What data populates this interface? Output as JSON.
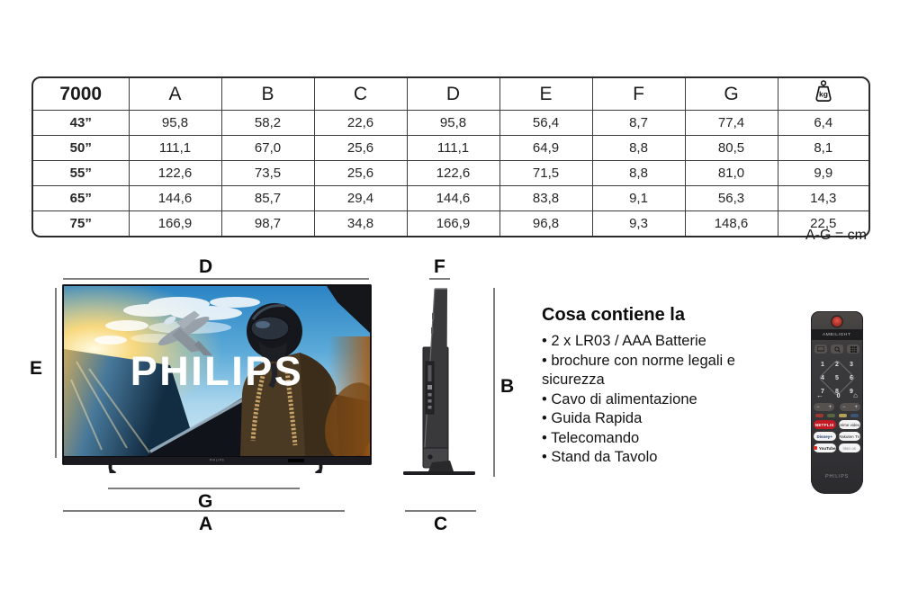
{
  "spec_table": {
    "model": "7000",
    "header_columns": [
      "A",
      "B",
      "C",
      "D",
      "E",
      "F",
      "G"
    ],
    "weight_icon_label": "kg",
    "rows": [
      [
        "43”",
        "95,8",
        "58,2",
        "22,6",
        "95,8",
        "56,4",
        "8,7",
        "77,4",
        "6,4"
      ],
      [
        "50”",
        "111,1",
        "67,0",
        "25,6",
        "111,1",
        "64,9",
        "8,8",
        "80,5",
        "8,1"
      ],
      [
        "55”",
        "122,6",
        "73,5",
        "25,6",
        "122,6",
        "71,5",
        "8,8",
        "81,0",
        "9,9"
      ],
      [
        "65”",
        "144,6",
        "85,7",
        "29,4",
        "144,6",
        "83,8",
        "9,1",
        "56,3",
        "14,3"
      ],
      [
        "75”",
        "166,9",
        "98,7",
        "34,8",
        "166,9",
        "96,8",
        "9,3",
        "148,6",
        "22,5"
      ]
    ],
    "units_note": "A-G = cm"
  },
  "front_view": {
    "dim_top": "D",
    "dim_left": "E",
    "dim_stand": "G",
    "dim_bottom": "A",
    "screen_logo": "PHILIPS",
    "bezel_logo": "PHILIPS"
  },
  "side_view": {
    "dim_top": "F",
    "dim_right": "B",
    "dim_bottom": "C"
  },
  "box_contents": {
    "title": "Cosa contiene la",
    "items": [
      "2 x LR03 / AAA Batterie",
      "brochure con norme legali e sicurezza",
      "Cavo di alimentazione",
      "Guida Rapida",
      "Telecomando",
      "Stand da Tavolo"
    ]
  },
  "remote": {
    "ambilight_label": "AMBILIGHT",
    "digits": [
      "1",
      "2",
      "3",
      "4",
      "5",
      "6",
      "7",
      "8",
      "9"
    ],
    "zero": "0",
    "back_glyph": "←",
    "home_glyph": "⌂",
    "rocker_minus": "−",
    "rocker_plus": "+",
    "streaming_buttons": [
      {
        "label": "NETFLIX"
      },
      {
        "label": "prime video"
      },
      {
        "label": "Disney+"
      },
      {
        "label": "Rakuten TV"
      },
      {
        "label": "YouTube"
      },
      {
        "label": "titan os"
      }
    ],
    "brand": "PHILIPS"
  },
  "colors": {
    "netflix_red": "#c11a22",
    "power_button_red": "#b23229",
    "dimension_line_gray": "#7d7d7d",
    "remote_body_gray": "#3b3a3c"
  }
}
